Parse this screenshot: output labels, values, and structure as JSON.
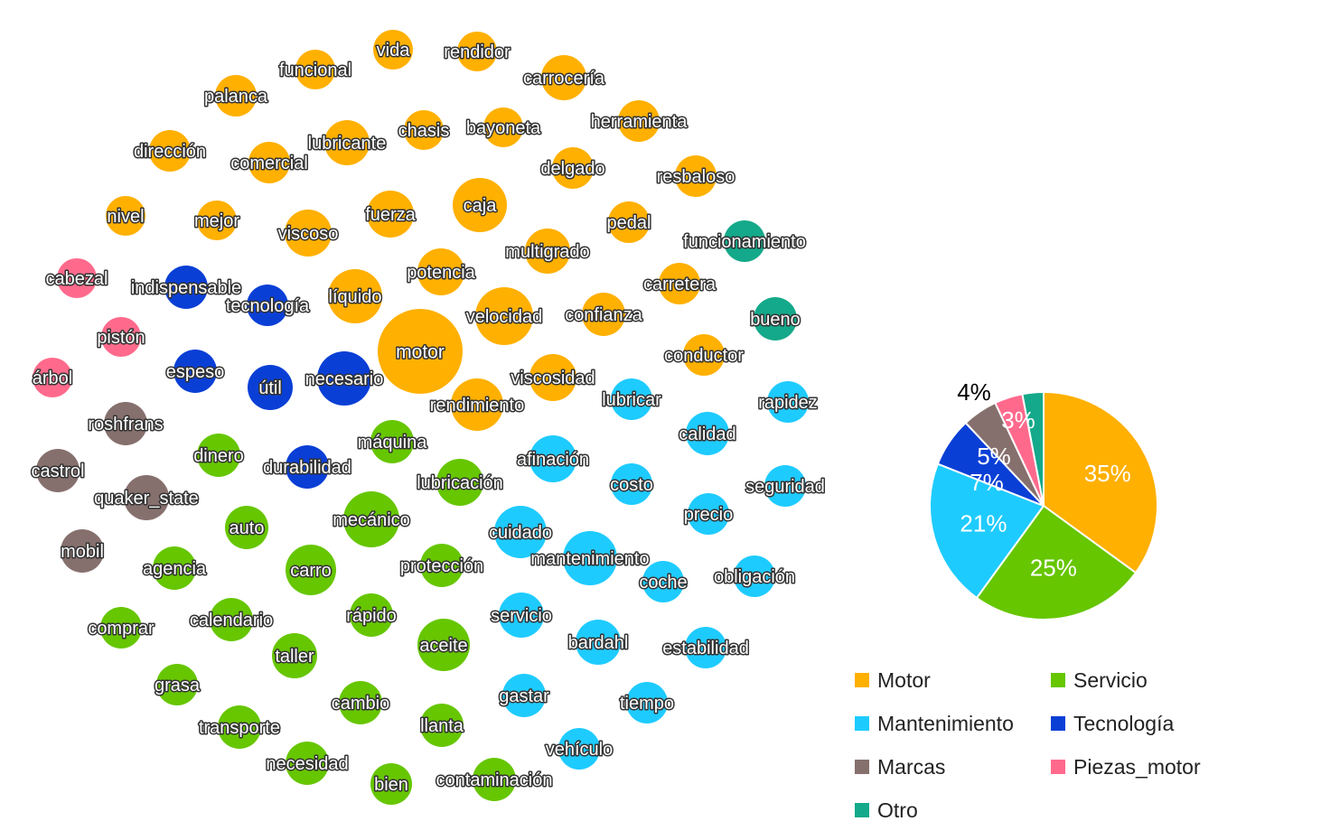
{
  "colors": {
    "Motor": "#FFB000",
    "Servicio": "#66C600",
    "Mantenimiento": "#1ECBFF",
    "Tecnología": "#0A3FD6",
    "Marcas": "#86706E",
    "Piezas_motor": "#FF6A8C",
    "Otro": "#14A98A"
  },
  "chart_data": [
    {
      "type": "network",
      "nodes": [
        {
          "label": "vida",
          "category": "Motor"
        },
        {
          "label": "rendidor",
          "category": "Motor"
        },
        {
          "label": "funcional",
          "category": "Motor"
        },
        {
          "label": "carrocería",
          "category": "Motor"
        },
        {
          "label": "palanca",
          "category": "Motor"
        },
        {
          "label": "herramienta",
          "category": "Motor"
        },
        {
          "label": "bayoneta",
          "category": "Motor"
        },
        {
          "label": "chasis",
          "category": "Motor"
        },
        {
          "label": "lubricante",
          "category": "Motor"
        },
        {
          "label": "dirección",
          "category": "Motor"
        },
        {
          "label": "comercial",
          "category": "Motor"
        },
        {
          "label": "delgado",
          "category": "Motor"
        },
        {
          "label": "resbaloso",
          "category": "Motor"
        },
        {
          "label": "caja",
          "category": "Motor"
        },
        {
          "label": "nivel",
          "category": "Motor"
        },
        {
          "label": "mejor",
          "category": "Motor"
        },
        {
          "label": "viscoso",
          "category": "Motor"
        },
        {
          "label": "fuerza",
          "category": "Motor"
        },
        {
          "label": "pedal",
          "category": "Motor"
        },
        {
          "label": "multigrado",
          "category": "Motor"
        },
        {
          "label": "potencia",
          "category": "Motor"
        },
        {
          "label": "carretera",
          "category": "Motor"
        },
        {
          "label": "líquido",
          "category": "Motor"
        },
        {
          "label": "velocidad",
          "category": "Motor"
        },
        {
          "label": "confianza",
          "category": "Motor"
        },
        {
          "label": "motor",
          "category": "Motor"
        },
        {
          "label": "conductor",
          "category": "Motor"
        },
        {
          "label": "viscosidad",
          "category": "Motor"
        },
        {
          "label": "rendimiento",
          "category": "Motor"
        },
        {
          "label": "funcionamiento",
          "category": "Otro"
        },
        {
          "label": "bueno",
          "category": "Otro"
        },
        {
          "label": "cabezal",
          "category": "Piezas_motor"
        },
        {
          "label": "pistón",
          "category": "Piezas_motor"
        },
        {
          "label": "árbol",
          "category": "Piezas_motor"
        },
        {
          "label": "indispensable",
          "category": "Tecnología"
        },
        {
          "label": "tecnología",
          "category": "Tecnología"
        },
        {
          "label": "espeso",
          "category": "Tecnología"
        },
        {
          "label": "útil",
          "category": "Tecnología"
        },
        {
          "label": "necesario",
          "category": "Tecnología"
        },
        {
          "label": "durabilidad",
          "category": "Tecnología"
        },
        {
          "label": "roshfrans",
          "category": "Marcas"
        },
        {
          "label": "castrol",
          "category": "Marcas"
        },
        {
          "label": "quaker_state",
          "category": "Marcas"
        },
        {
          "label": "mobil",
          "category": "Marcas"
        },
        {
          "label": "lubricar",
          "category": "Mantenimiento"
        },
        {
          "label": "rapidez",
          "category": "Mantenimiento"
        },
        {
          "label": "calidad",
          "category": "Mantenimiento"
        },
        {
          "label": "afinación",
          "category": "Mantenimiento"
        },
        {
          "label": "costo",
          "category": "Mantenimiento"
        },
        {
          "label": "seguridad",
          "category": "Mantenimiento"
        },
        {
          "label": "precio",
          "category": "Mantenimiento"
        },
        {
          "label": "cuidado",
          "category": "Mantenimiento"
        },
        {
          "label": "mantenimiento",
          "category": "Mantenimiento"
        },
        {
          "label": "coche",
          "category": "Mantenimiento"
        },
        {
          "label": "obligación",
          "category": "Mantenimiento"
        },
        {
          "label": "servicio",
          "category": "Mantenimiento"
        },
        {
          "label": "bardahl",
          "category": "Mantenimiento"
        },
        {
          "label": "estabilidad",
          "category": "Mantenimiento"
        },
        {
          "label": "gastar",
          "category": "Mantenimiento"
        },
        {
          "label": "tiempo",
          "category": "Mantenimiento"
        },
        {
          "label": "vehículo",
          "category": "Mantenimiento"
        },
        {
          "label": "dinero",
          "category": "Servicio"
        },
        {
          "label": "máquina",
          "category": "Servicio"
        },
        {
          "label": "lubricación",
          "category": "Servicio"
        },
        {
          "label": "auto",
          "category": "Servicio"
        },
        {
          "label": "mecánico",
          "category": "Servicio"
        },
        {
          "label": "agencia",
          "category": "Servicio"
        },
        {
          "label": "carro",
          "category": "Servicio"
        },
        {
          "label": "protección",
          "category": "Servicio"
        },
        {
          "label": "comprar",
          "category": "Servicio"
        },
        {
          "label": "calendario",
          "category": "Servicio"
        },
        {
          "label": "rápido",
          "category": "Servicio"
        },
        {
          "label": "taller",
          "category": "Servicio"
        },
        {
          "label": "aceite",
          "category": "Servicio"
        },
        {
          "label": "grasa",
          "category": "Servicio"
        },
        {
          "label": "cambio",
          "category": "Servicio"
        },
        {
          "label": "transporte",
          "category": "Servicio"
        },
        {
          "label": "llanta",
          "category": "Servicio"
        },
        {
          "label": "necesidad",
          "category": "Servicio"
        },
        {
          "label": "bien",
          "category": "Servicio"
        },
        {
          "label": "contaminación",
          "category": "Servicio"
        }
      ]
    },
    {
      "type": "pie",
      "slices": [
        {
          "category": "Motor",
          "value": 35,
          "label": "35%"
        },
        {
          "category": "Servicio",
          "value": 25,
          "label": "25%"
        },
        {
          "category": "Mantenimiento",
          "value": 21,
          "label": "21%"
        },
        {
          "category": "Tecnología",
          "value": 7,
          "label": "7%"
        },
        {
          "category": "Marcas",
          "value": 5,
          "label": "5%"
        },
        {
          "category": "Piezas_motor",
          "value": 4,
          "label": "4%"
        },
        {
          "category": "Otro",
          "value": 3,
          "label": "3%"
        }
      ],
      "legend": [
        "Motor",
        "Servicio",
        "Mantenimiento",
        "Tecnología",
        "Marcas",
        "Piezas_motor",
        "Otro"
      ],
      "legend_placement": "bottom"
    }
  ]
}
